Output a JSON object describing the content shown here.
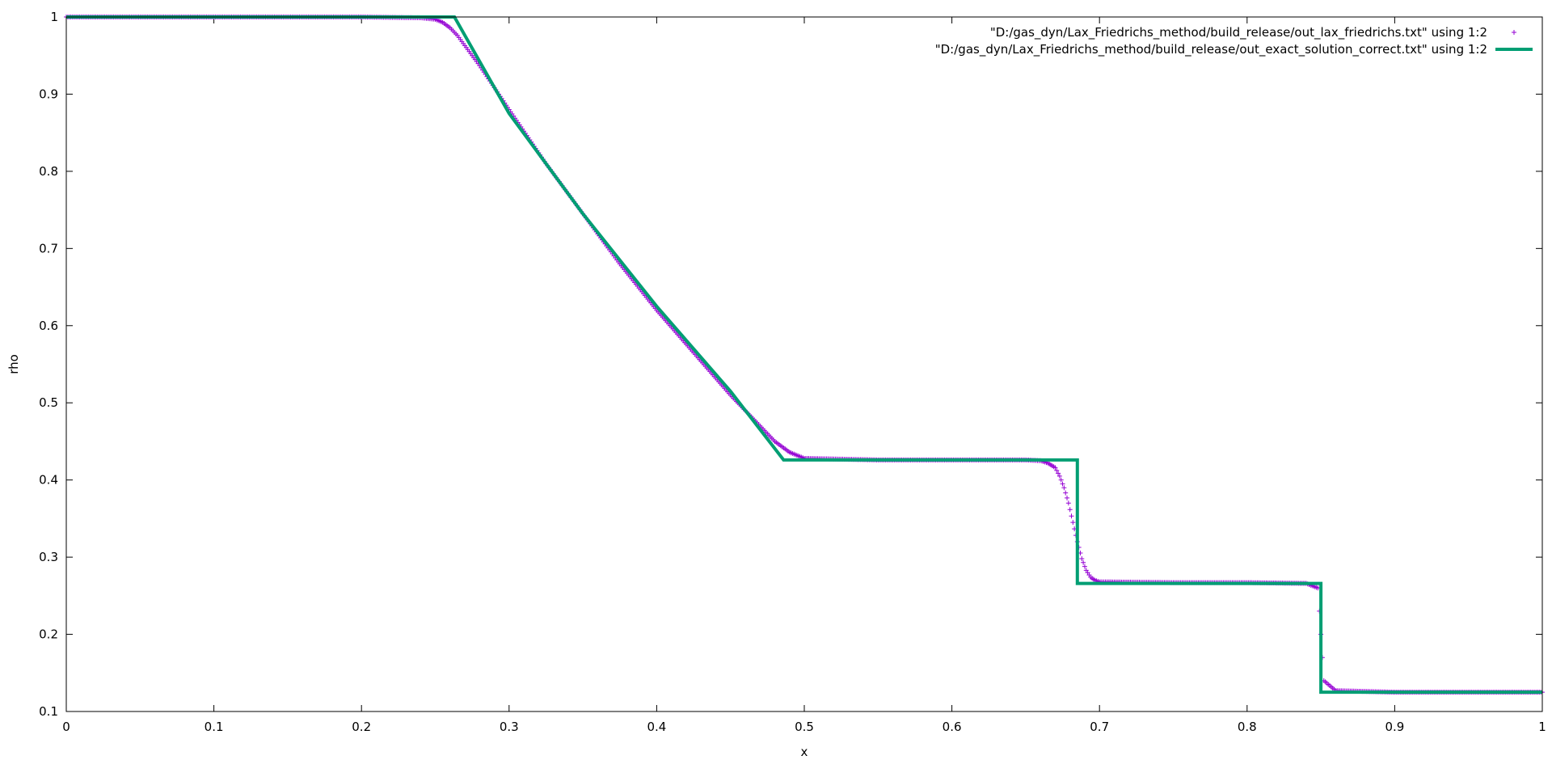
{
  "chart_data": {
    "type": "line",
    "title": "",
    "xlabel": "x",
    "ylabel": "rho",
    "xlim": [
      0,
      1
    ],
    "ylim": [
      0.1,
      1
    ],
    "xticks": [
      "0",
      "0.1",
      "0.2",
      "0.3",
      "0.4",
      "0.5",
      "0.6",
      "0.7",
      "0.8",
      "0.9",
      "1"
    ],
    "yticks": [
      "0.1",
      "0.2",
      "0.3",
      "0.4",
      "0.5",
      "0.6",
      "0.7",
      "0.8",
      "0.9",
      "1"
    ],
    "grid": false,
    "legend_position": "top-right",
    "series": [
      {
        "name": "\"D:/gas_dyn/Lax_Friedrichs_method/build_release/out_lax_friedrichs.txt\" using 1:2",
        "style": "points",
        "marker": "plus",
        "color": "#9400d3",
        "x": [
          0,
          0.05,
          0.1,
          0.15,
          0.2,
          0.24,
          0.25,
          0.255,
          0.26,
          0.265,
          0.27,
          0.28,
          0.3,
          0.325,
          0.35,
          0.375,
          0.4,
          0.425,
          0.45,
          0.47,
          0.48,
          0.49,
          0.5,
          0.55,
          0.6,
          0.65,
          0.66,
          0.665,
          0.67,
          0.673,
          0.676,
          0.679,
          0.682,
          0.685,
          0.688,
          0.691,
          0.694,
          0.697,
          0.7,
          0.75,
          0.8,
          0.84,
          0.848,
          0.85,
          0.852,
          0.86,
          0.9,
          0.95,
          1.0
        ],
        "y": [
          1.0,
          1.0,
          1.0,
          1.0,
          1.0,
          0.999,
          0.997,
          0.993,
          0.986,
          0.976,
          0.963,
          0.937,
          0.88,
          0.81,
          0.745,
          0.68,
          0.62,
          0.565,
          0.51,
          0.47,
          0.45,
          0.436,
          0.428,
          0.426,
          0.426,
          0.426,
          0.425,
          0.422,
          0.416,
          0.405,
          0.39,
          0.37,
          0.345,
          0.32,
          0.298,
          0.283,
          0.274,
          0.27,
          0.268,
          0.267,
          0.267,
          0.266,
          0.26,
          0.2,
          0.14,
          0.127,
          0.125,
          0.125,
          0.125
        ]
      },
      {
        "name": "\"D:/gas_dyn/Lax_Friedrichs_method/build_release/out_exact_solution_correct.txt\" using 1:2",
        "style": "line",
        "color": "#009e73",
        "x": [
          0,
          0.263,
          0.3,
          0.35,
          0.4,
          0.45,
          0.486,
          0.685,
          0.685,
          0.85,
          0.85,
          1.0
        ],
        "y": [
          1.0,
          1.0,
          0.875,
          0.745,
          0.625,
          0.515,
          0.426,
          0.426,
          0.266,
          0.266,
          0.125,
          0.125
        ]
      }
    ]
  }
}
